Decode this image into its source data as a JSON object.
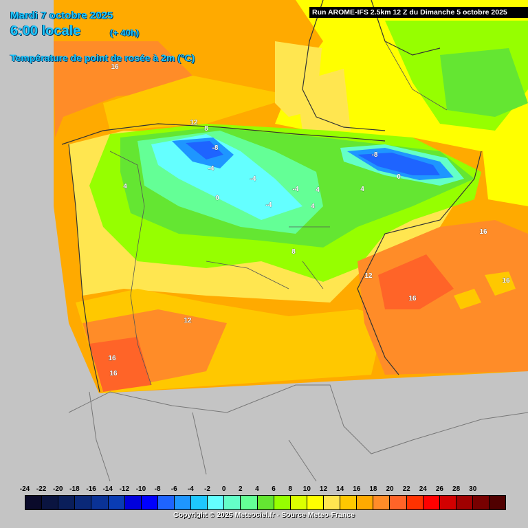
{
  "header": {
    "date": "Mardi 7 octobre 2025",
    "time": "6:00 locale",
    "lead": "(+ 40h)",
    "parameter": "Température de point de rosée à 2m (°C)",
    "run": "Run AROME-IFS 2.5km 12 Z du Dimanche 5 octobre 2025"
  },
  "isolines": [
    {
      "text": "16"
    },
    {
      "text": "12"
    },
    {
      "text": "8"
    },
    {
      "text": "-8"
    },
    {
      "text": "-4"
    },
    {
      "text": "4"
    },
    {
      "text": "0"
    },
    {
      "text": "-4"
    },
    {
      "text": "-4"
    },
    {
      "text": "4"
    },
    {
      "text": "-4"
    },
    {
      "text": "4"
    },
    {
      "text": "-8"
    },
    {
      "text": "0"
    },
    {
      "text": "4"
    },
    {
      "text": "8"
    },
    {
      "text": "12"
    },
    {
      "text": "16"
    },
    {
      "text": "16"
    },
    {
      "text": "16"
    },
    {
      "text": "12"
    },
    {
      "text": "16"
    },
    {
      "text": "16"
    }
  ],
  "legend": {
    "ticks": [
      "-24",
      "-22",
      "-20",
      "-18",
      "-16",
      "-14",
      "-12",
      "-10",
      "-8",
      "-6",
      "-4",
      "-2",
      "0",
      "2",
      "4",
      "6",
      "8",
      "10",
      "12",
      "14",
      "16",
      "18",
      "20",
      "22",
      "24",
      "26",
      "28",
      "30"
    ],
    "colors": [
      "#0a0a2a",
      "#0a1440",
      "#0a1e5a",
      "#0a2878",
      "#0a3296",
      "#0a3cb4",
      "#0000dc",
      "#0000ff",
      "#1e64ff",
      "#1e96ff",
      "#1ec8ff",
      "#64ffff",
      "#64ffc8",
      "#64ff96",
      "#64e632",
      "#96ff00",
      "#dcff00",
      "#ffff00",
      "#ffe650",
      "#ffc800",
      "#ffaa00",
      "#ff8c28",
      "#ff6428",
      "#ff3200",
      "#ff0000",
      "#d20000",
      "#a00000",
      "#780000",
      "#500000"
    ]
  },
  "copyright": "Copyright © 2025 Meteociel.fr - Source Meteo-France"
}
